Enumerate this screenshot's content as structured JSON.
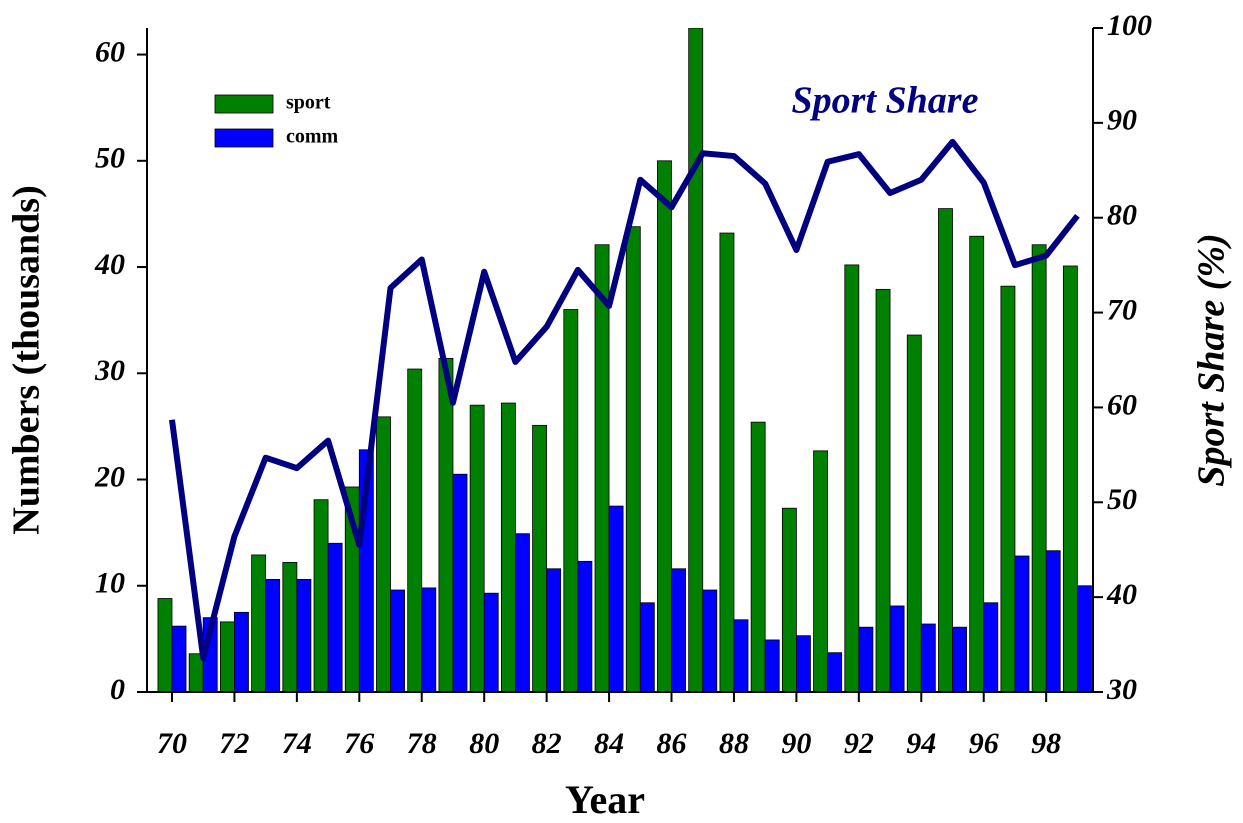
{
  "chart_data": {
    "type": "bar-line",
    "x_label": "Year",
    "y_label": "Numbers (thousands)",
    "y2_label": "Sport Share (%)",
    "annotation": "Sport Share",
    "x": [
      70,
      71,
      72,
      73,
      74,
      75,
      76,
      77,
      78,
      79,
      80,
      81,
      82,
      83,
      84,
      85,
      86,
      87,
      88,
      89,
      90,
      91,
      92,
      93,
      94,
      95,
      96,
      97,
      98,
      99
    ],
    "xlim": [
      69.2,
      99.5
    ],
    "xticks": [
      70,
      72,
      74,
      76,
      78,
      80,
      82,
      84,
      86,
      88,
      90,
      92,
      94,
      96,
      98
    ],
    "ylim": [
      0,
      62.5
    ],
    "yticks": [
      0,
      10,
      20,
      30,
      40,
      50,
      60
    ],
    "y2lim": [
      30,
      100
    ],
    "y2ticks": [
      30,
      40,
      50,
      60,
      70,
      80,
      90,
      100
    ],
    "series": [
      {
        "name": "sport",
        "color": "#008000",
        "kind": "bar",
        "values": [
          8.8,
          3.6,
          6.6,
          12.9,
          12.2,
          18.1,
          19.3,
          25.9,
          30.4,
          31.4,
          27.0,
          27.2,
          25.1,
          36.0,
          42.1,
          43.8,
          50.0,
          62.5,
          43.2,
          25.4,
          17.3,
          22.7,
          40.2,
          37.9,
          33.6,
          45.5,
          42.9,
          38.2,
          42.1,
          40.1
        ]
      },
      {
        "name": "comm",
        "color": "#0000ff",
        "kind": "bar",
        "values": [
          6.2,
          7.0,
          7.5,
          10.6,
          10.6,
          14.0,
          22.8,
          9.6,
          9.8,
          20.5,
          9.3,
          14.9,
          11.6,
          12.3,
          17.5,
          8.4,
          11.6,
          9.6,
          6.8,
          4.9,
          5.3,
          3.7,
          6.1,
          8.1,
          6.4,
          6.1,
          8.4,
          12.8,
          13.3,
          10.0
        ]
      },
      {
        "color": "#000080",
        "kind": "line",
        "axis": "y2",
        "values": [
          58.7,
          33.6,
          46.4,
          54.7,
          53.6,
          56.5,
          45.5,
          72.6,
          75.6,
          60.5,
          74.3,
          64.8,
          68.5,
          74.5,
          70.7,
          84.0,
          81.1,
          86.8,
          86.5,
          83.6,
          76.6,
          85.9,
          86.7,
          82.6,
          84.0,
          88.0,
          83.7,
          75.0,
          76.0,
          80.2
        ]
      }
    ]
  }
}
